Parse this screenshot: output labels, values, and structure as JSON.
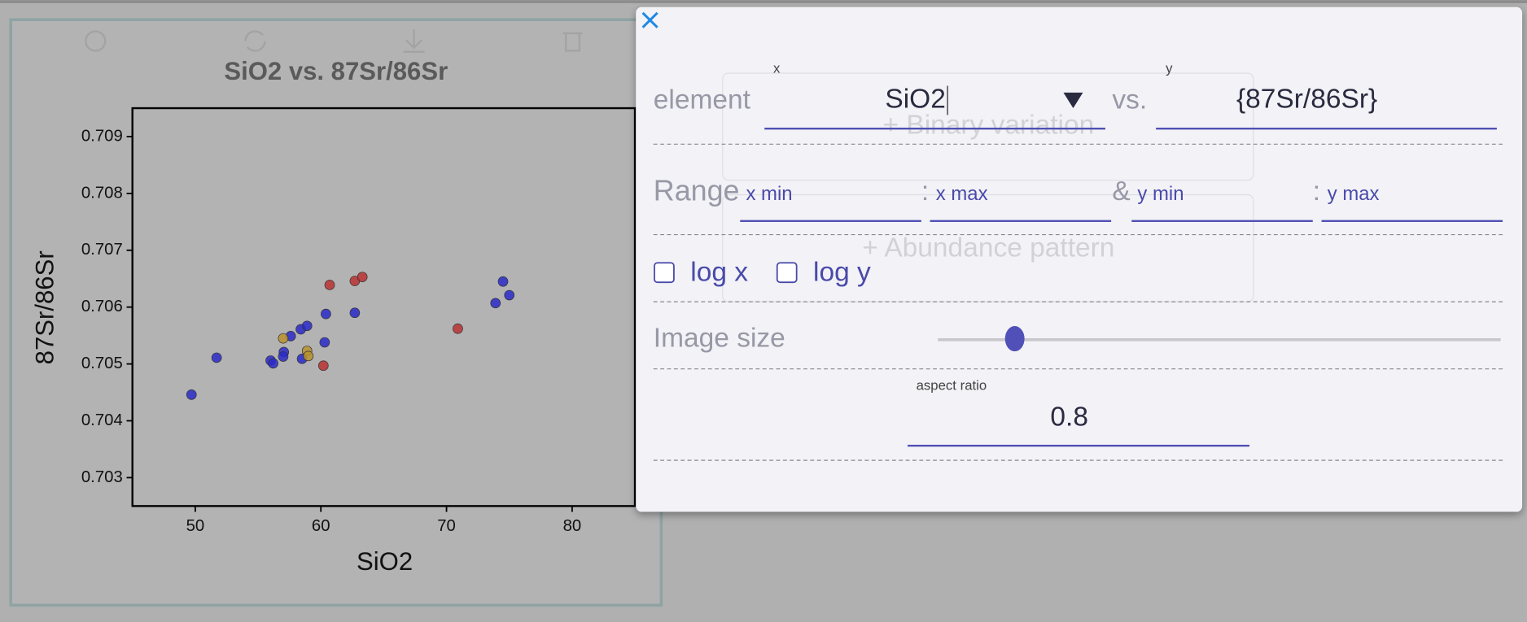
{
  "chart_data": {
    "type": "scatter",
    "title": "SiO2 vs. 87Sr/86Sr",
    "x_label": "SiO2",
    "y_label": "87Sr/86Sr",
    "xlim": [
      45,
      85
    ],
    "ylim": [
      0.7025,
      0.7095
    ],
    "xticks": [
      50,
      60,
      70,
      80
    ],
    "yticks": [
      0.703,
      0.704,
      0.705,
      0.706,
      0.707,
      0.708,
      0.709
    ],
    "series": [
      {
        "color": "#2a2ac8",
        "x": [
          49.7,
          51.7,
          56.0,
          56.2,
          57.05,
          57.0,
          57.6,
          58.4,
          58.5,
          58.9,
          60.3,
          60.4,
          62.7,
          73.9,
          74.5,
          75.0
        ],
        "values": [
          0.70446,
          0.70511,
          0.70506,
          0.70501,
          0.70521,
          0.70513,
          0.70549,
          0.70561,
          0.70509,
          0.70567,
          0.70538,
          0.70588,
          0.7059,
          0.70607,
          0.70645,
          0.70621
        ]
      },
      {
        "color": "#b83232",
        "x": [
          60.7,
          62.7,
          63.3,
          60.2,
          70.9
        ],
        "values": [
          0.70639,
          0.70646,
          0.70653,
          0.70497,
          0.70562
        ]
      },
      {
        "color": "#b8902e",
        "x": [
          57.0,
          58.9,
          59.0
        ],
        "values": [
          0.70545,
          0.70523,
          0.70514
        ]
      }
    ]
  },
  "background_buttons": [
    "+ Binary variation",
    "+ Abundance pattern"
  ],
  "dialog": {
    "element_label": "element",
    "x_caption": "x",
    "x_value": "SiO2",
    "vs": "vs.",
    "y_caption": "y",
    "y_value": "{87Sr/86Sr}",
    "range_label": "Range",
    "x_min": "x min",
    "x_sep": ":",
    "x_max": "x max",
    "and": "&",
    "y_min": "y min",
    "y_sep": ":",
    "y_max": "y max",
    "log_x": "log x",
    "log_y": "log y",
    "image_size": "Image size",
    "aspect_label": "aspect ratio",
    "aspect_value": "0.8"
  }
}
